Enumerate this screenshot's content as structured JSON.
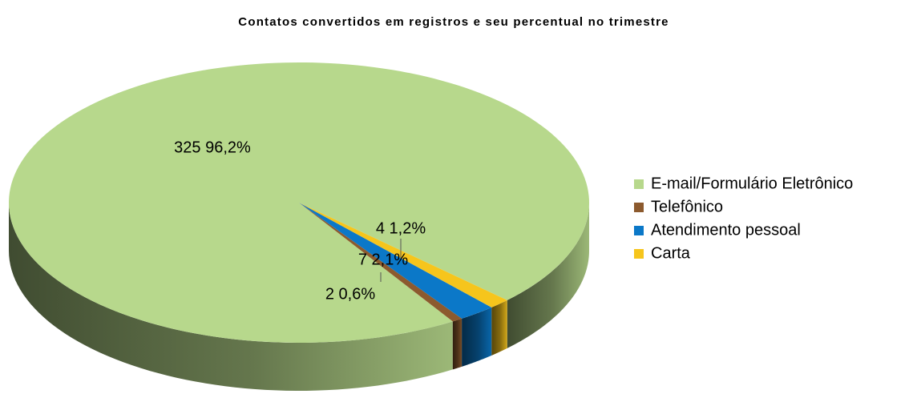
{
  "chart_data": {
    "type": "pie",
    "title": "Contatos convertidos em registros e seu percentual no trimestre",
    "categories": [
      "E-mail/Formulário Eletrônico",
      "Telefônico",
      "Atendimento pessoal",
      "Carta"
    ],
    "values": [
      325,
      2,
      7,
      4
    ],
    "value_labels": [
      "325 96,2%",
      "2 0,6%",
      "7 2,1%",
      "4 1,2%"
    ],
    "colors": [
      "#b7d88c",
      "#8c5a2e",
      "#0b78c8",
      "#f6c51c"
    ],
    "legend": "right"
  }
}
